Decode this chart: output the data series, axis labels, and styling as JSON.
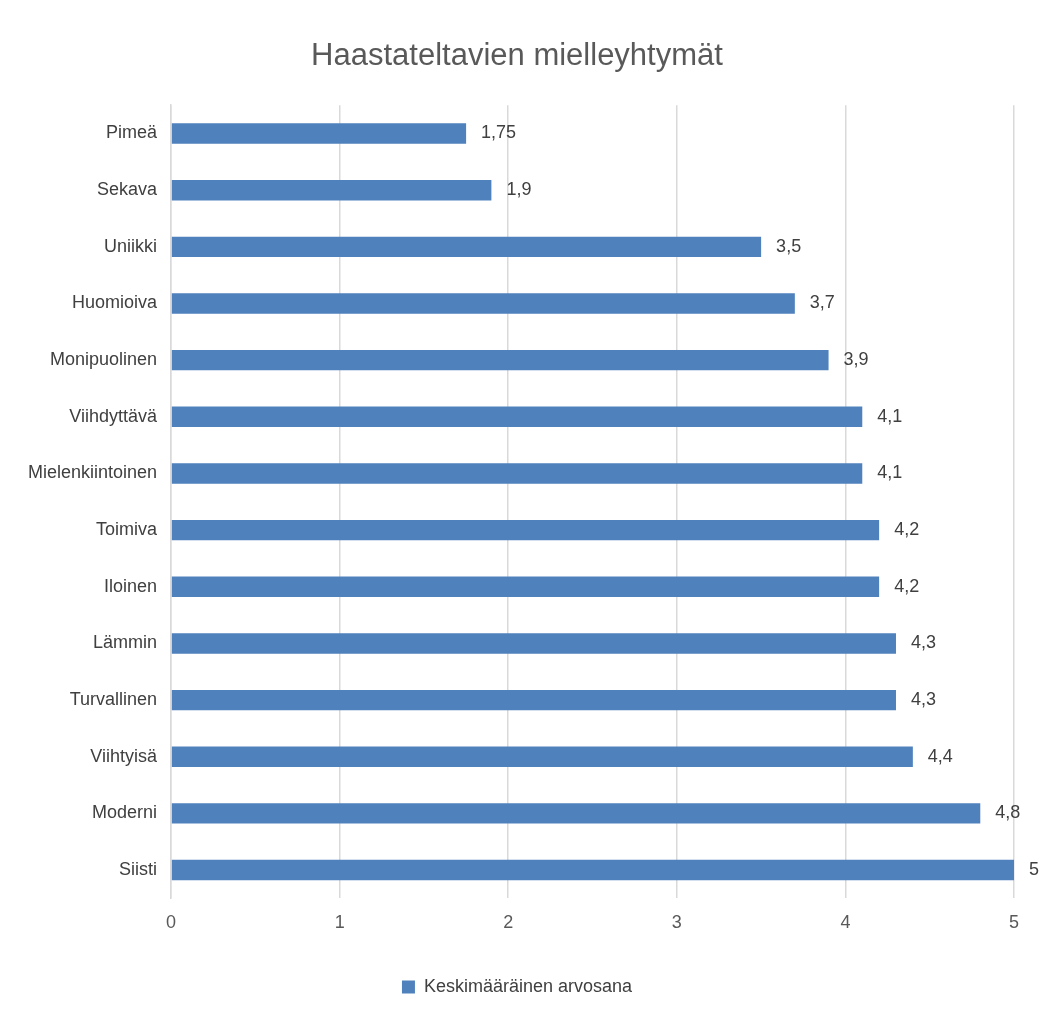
{
  "chart_data": {
    "type": "bar",
    "orientation": "horizontal",
    "title": "Haastateltavien mielleyhtymät",
    "categories": [
      "Pimeä",
      "Sekava",
      "Uniikki",
      "Huomioiva",
      "Monipuolinen",
      "Viihdyttävä",
      "Mielenkiintoinen",
      "Toimiva",
      "Iloinen",
      "Lämmin",
      "Turvallinen",
      "Viihtyisä",
      "Moderni",
      "Siisti"
    ],
    "series": [
      {
        "name": "Keskimääräinen arvosana",
        "color": "#4f81bd",
        "values": [
          1.75,
          1.9,
          3.5,
          3.7,
          3.9,
          4.1,
          4.1,
          4.2,
          4.2,
          4.3,
          4.3,
          4.4,
          4.8,
          5
        ],
        "value_labels": [
          "1,75",
          "1,9",
          "3,5",
          "3,7",
          "3,9",
          "4,1",
          "4,1",
          "4,2",
          "4,2",
          "4,3",
          "4,3",
          "4,4",
          "4,8",
          "5"
        ]
      }
    ],
    "xlim": [
      0,
      5
    ],
    "xticks": [
      0,
      1,
      2,
      3,
      4,
      5
    ],
    "grid": "x",
    "legend": "bottom"
  }
}
